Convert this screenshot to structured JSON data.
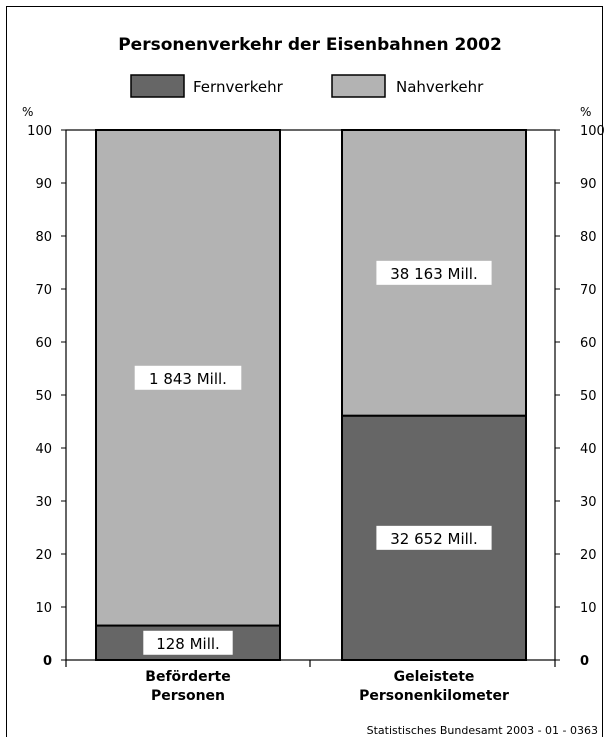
{
  "chart_data": {
    "type": "bar",
    "stacked": true,
    "title": "Personenverkehr der Eisenbahnen 2002",
    "categories": [
      "Beförderte Personen",
      "Geleistete Personenkilometer"
    ],
    "category_labels": [
      [
        "Beförderte",
        "Personen"
      ],
      [
        "Geleistete",
        "Personenkilometer"
      ]
    ],
    "series": [
      {
        "name": "Fernverkehr",
        "values": [
          6.5,
          46.1
        ],
        "labels": [
          "128 Mill.",
          "32 652 Mill."
        ]
      },
      {
        "name": "Nahverkehr",
        "values": [
          93.5,
          53.9
        ],
        "labels": [
          "1 843 Mill.",
          "38 163 Mill."
        ]
      }
    ],
    "ylabel_left": "%",
    "ylabel_right": "%",
    "ylim": [
      0,
      100
    ],
    "yticks": [
      0,
      10,
      20,
      30,
      40,
      50,
      60,
      70,
      80,
      90,
      100
    ],
    "grid": false,
    "legend_position": "top",
    "colors": {
      "Fernverkehr": "#666666",
      "Nahverkehr": "#b3b3b3"
    },
    "source": "Statistisches Bundesamt 2003 - 01 - 0363"
  }
}
